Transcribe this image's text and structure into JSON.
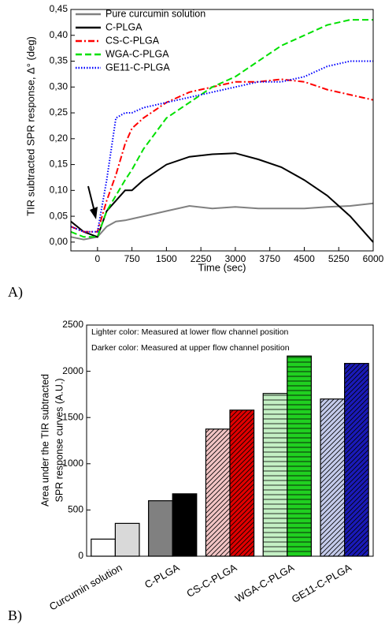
{
  "chart_data": [
    {
      "type": "line",
      "panel_label": "A)",
      "xlabel": "Time (sec)",
      "ylabel": "TIR subtracted SPR response, Δ° (deg)",
      "x": [
        -580,
        -300,
        0,
        200,
        400,
        600,
        750,
        1000,
        1500,
        2000,
        2500,
        3000,
        3500,
        4000,
        4500,
        5000,
        5500,
        6000
      ],
      "xlim": [
        -580,
        6000
      ],
      "xticks": [
        0,
        750,
        1500,
        2250,
        3000,
        3750,
        4500,
        5250,
        6000
      ],
      "ylim": [
        -0.017,
        0.45
      ],
      "yticks": [
        {
          "value": 0,
          "label": "0,00"
        },
        {
          "value": 0.05,
          "label": "0,05"
        },
        {
          "value": 0.1,
          "label": "0,10"
        },
        {
          "value": 0.15,
          "label": "0,15"
        },
        {
          "value": 0.2,
          "label": "0,20"
        },
        {
          "value": 0.25,
          "label": "0,25"
        },
        {
          "value": 0.3,
          "label": "0,30"
        },
        {
          "value": 0.35,
          "label": "0,35"
        },
        {
          "value": 0.4,
          "label": "0,40"
        },
        {
          "value": 0.45,
          "label": "0,45"
        }
      ],
      "legend": "upper left",
      "series": [
        {
          "name": "Pure curcumin solution",
          "color": "#808080",
          "dash": "solid",
          "values": [
            0.01,
            0.005,
            0.01,
            0.03,
            0.04,
            0.042,
            0.045,
            0.05,
            0.06,
            0.07,
            0.065,
            0.068,
            0.065,
            0.065,
            0.065,
            0.068,
            0.07,
            0.075
          ]
        },
        {
          "name": "C-PLGA",
          "color": "#000000",
          "dash": "solid",
          "values": [
            0.04,
            0.02,
            0.01,
            0.06,
            0.08,
            0.1,
            0.1,
            0.12,
            0.15,
            0.165,
            0.17,
            0.172,
            0.16,
            0.145,
            0.12,
            0.09,
            0.05,
            0.0
          ]
        },
        {
          "name": "CS-C-PLGA",
          "color": "#ff0000",
          "dash": "dashdot",
          "values": [
            0.03,
            0.02,
            0.02,
            0.08,
            0.13,
            0.19,
            0.22,
            0.24,
            0.27,
            0.29,
            0.3,
            0.31,
            0.31,
            0.315,
            0.31,
            0.295,
            0.285,
            0.275
          ]
        },
        {
          "name": "WGA-C-PLGA",
          "color": "#00e000",
          "dash": "dash",
          "values": [
            0.02,
            0.01,
            0.01,
            0.06,
            0.09,
            0.12,
            0.14,
            0.18,
            0.24,
            0.27,
            0.3,
            0.32,
            0.35,
            0.38,
            0.4,
            0.42,
            0.43,
            0.43
          ]
        },
        {
          "name": "GE11-C-PLGA",
          "color": "#0000ff",
          "dash": "dot",
          "values": [
            0.03,
            0.02,
            0.02,
            0.12,
            0.24,
            0.25,
            0.25,
            0.26,
            0.27,
            0.28,
            0.29,
            0.3,
            0.31,
            0.31,
            0.32,
            0.34,
            0.35,
            0.35
          ]
        }
      ]
    },
    {
      "type": "bar",
      "panel_label": "B)",
      "ylabel": [
        "Area under the TIR subtracted",
        "SPR response curves (A.U.)"
      ],
      "annotations": [
        "Lighter color: Measured at lower flow channel position",
        "Darker color: Measured at upper flow channel position"
      ],
      "categories": [
        "Curcumin solution",
        "C-PLGA",
        "CS-C-PLGA",
        "WGA-C-PLGA",
        "GE11-C-PLGA"
      ],
      "hatch": [
        "none",
        "none",
        "diagonal",
        "horizontal",
        "diagonal"
      ],
      "ylim": [
        0,
        2500
      ],
      "yticks": [
        0,
        500,
        1000,
        1500,
        2000,
        2500
      ],
      "series": [
        {
          "colors": [
            "#ffffff",
            "#808080",
            "#f2c4c4",
            "#c4f0c4",
            "#c4cbeb"
          ],
          "values": [
            185,
            600,
            1375,
            1760,
            1700
          ]
        },
        {
          "colors": [
            "#d9d9d9",
            "#000000",
            "#e00000",
            "#20d020",
            "#1a1ab8"
          ],
          "values": [
            355,
            675,
            1580,
            2165,
            2085
          ]
        }
      ]
    }
  ]
}
